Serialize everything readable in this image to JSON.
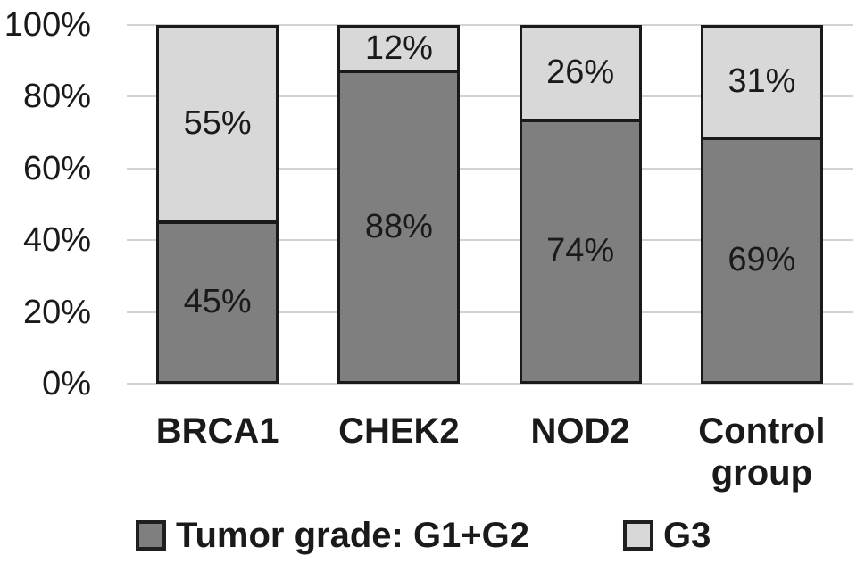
{
  "chart_data": {
    "type": "bar",
    "stacked": true,
    "title": "",
    "xlabel": "",
    "ylabel": "",
    "categories": [
      "BRCA1",
      "CHEK2",
      "NOD2",
      "Control group"
    ],
    "series": [
      {
        "name": "Tumor grade: G1+G2",
        "color": "#7f7f7f",
        "values": [
          45,
          88,
          74,
          69
        ]
      },
      {
        "name": "G3",
        "color": "#d8d8d8",
        "values": [
          55,
          12,
          26,
          31
        ]
      }
    ],
    "data_labels": [
      [
        "45%",
        "88%",
        "74%",
        "69%"
      ],
      [
        "55%",
        "12%",
        "26%",
        "31%"
      ]
    ],
    "ylim": [
      0,
      100
    ],
    "yticks": [
      "0%",
      "20%",
      "40%",
      "60%",
      "80%",
      "100%"
    ],
    "grid": "horizontal",
    "legend_position": "bottom",
    "colors": {
      "bar_border": "#1a1a1a",
      "gridline": "#d2d2d2",
      "text": "#1a1a1a",
      "background": "#ffffff"
    }
  }
}
